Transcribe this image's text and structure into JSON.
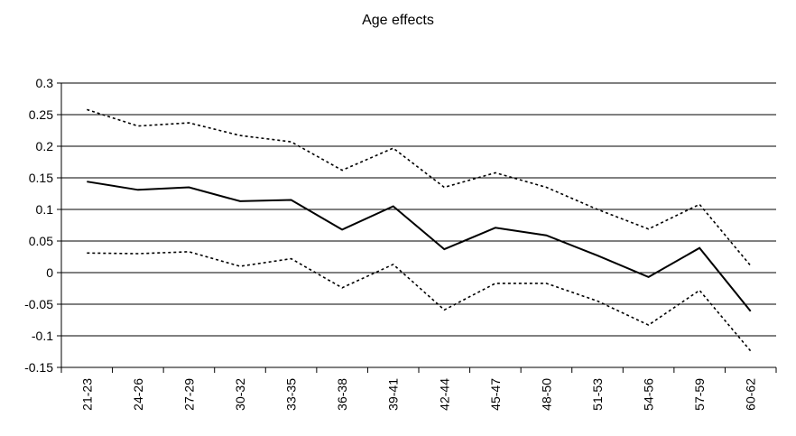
{
  "chart_data": {
    "type": "line",
    "title": "Age effects",
    "xlabel": "",
    "ylabel": "",
    "categories": [
      "21-23",
      "24-26",
      "27-29",
      "30-32",
      "33-35",
      "36-38",
      "39-41",
      "42-44",
      "45-47",
      "48-50",
      "51-53",
      "54-56",
      "57-59",
      "60-62"
    ],
    "ylim": [
      -0.15,
      0.3
    ],
    "yticks": [
      0.3,
      0.25,
      0.2,
      0.15,
      0.1,
      0.05,
      0,
      -0.05,
      -0.1,
      -0.15
    ],
    "ytick_labels": [
      "0.3",
      "0.25",
      "0.2",
      "0.15",
      "0.1",
      "0.05",
      "0",
      "-0.05",
      "-0.1",
      "-0.15"
    ],
    "grid": true,
    "legend": "none",
    "series": [
      {
        "style": "solid",
        "values": [
          0.144,
          0.131,
          0.135,
          0.113,
          0.115,
          0.068,
          0.105,
          0.037,
          0.071,
          0.059,
          0.027,
          -0.007,
          0.039,
          -0.061
        ]
      },
      {
        "style": "dotted",
        "values": [
          0.258,
          0.232,
          0.237,
          0.217,
          0.207,
          0.162,
          0.197,
          0.135,
          0.158,
          0.135,
          0.1,
          0.069,
          0.108,
          0.011
        ]
      },
      {
        "style": "dotted",
        "values": [
          0.031,
          0.03,
          0.033,
          0.01,
          0.022,
          -0.024,
          0.013,
          -0.059,
          -0.017,
          -0.017,
          -0.045,
          -0.083,
          -0.028,
          -0.124
        ]
      }
    ]
  }
}
